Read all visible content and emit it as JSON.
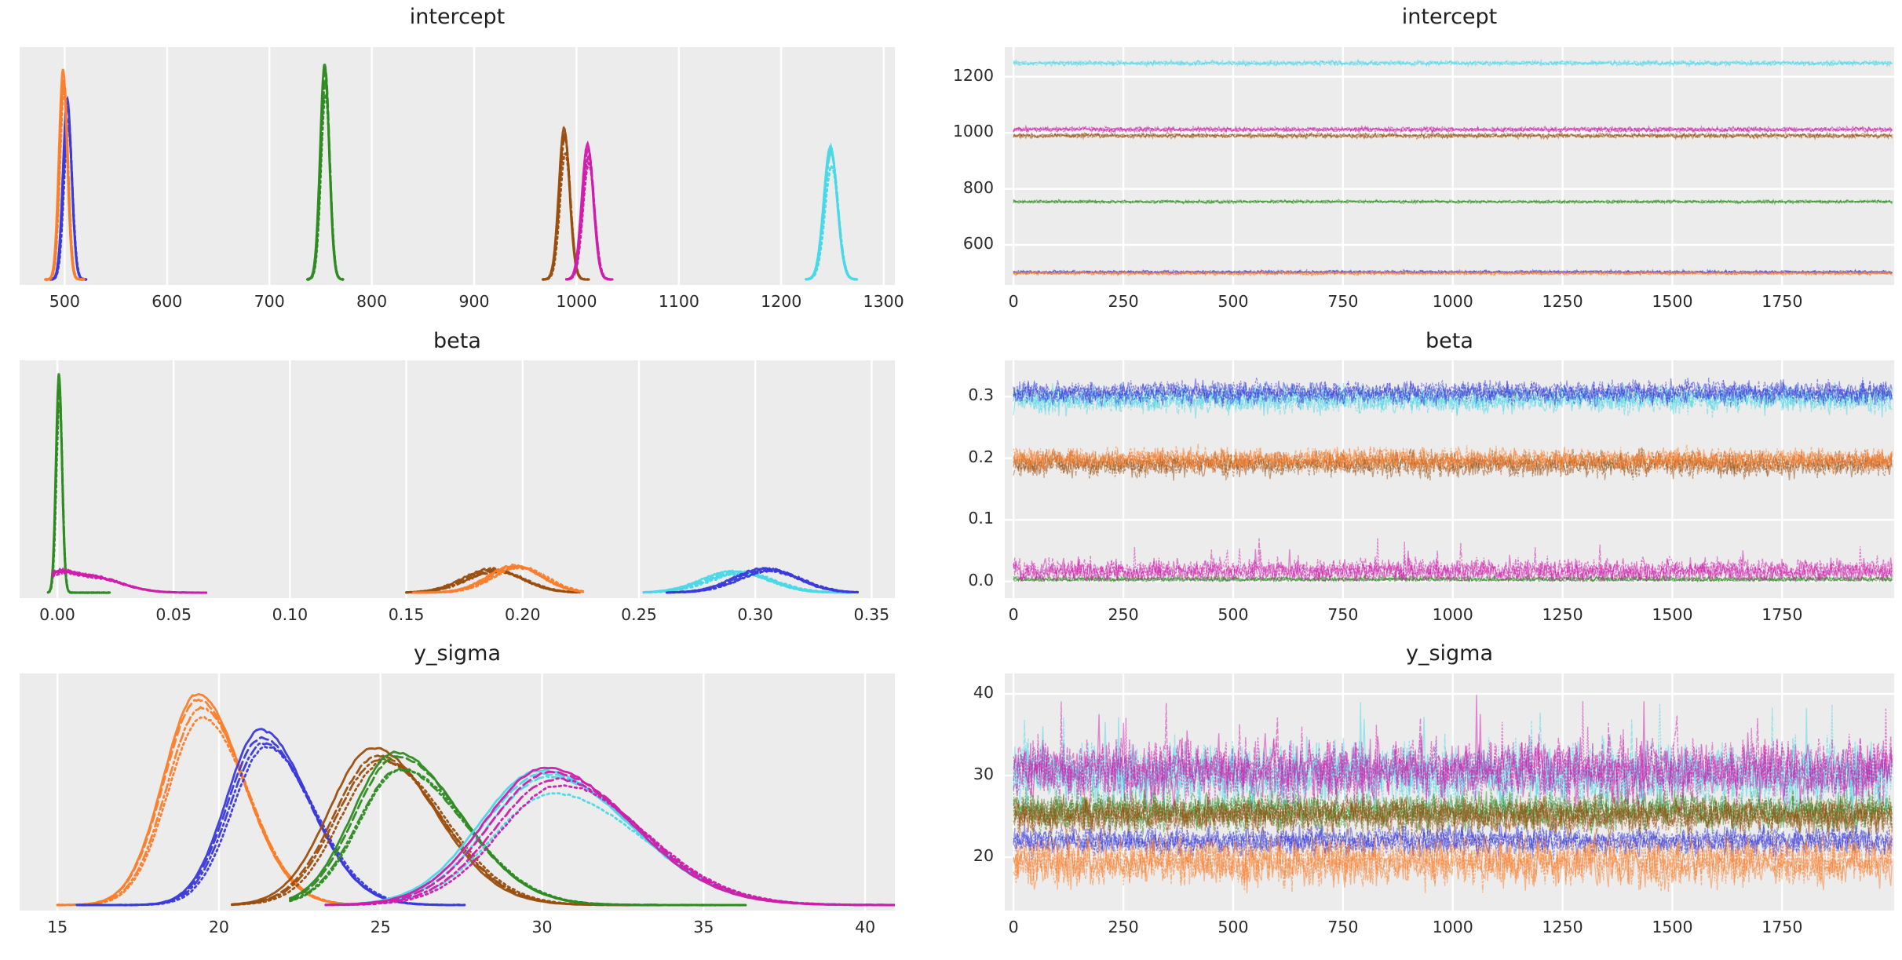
{
  "figure": {
    "background": "#ffffff",
    "panel_background": "#ececec",
    "grid_color": "#ffffff",
    "grid_width": 2.5,
    "tick_label_color": "#2b2b2b",
    "title_color": "#1f1f1f"
  },
  "palette": {
    "blue": "#3a3adb",
    "orange": "#fb7d2a",
    "green": "#2e8b22",
    "brown": "#9a4e0e",
    "magenta": "#d01cab",
    "cyan": "#49d8e8"
  },
  "chain_line_styles": [
    "solid",
    "dashed",
    "dashdot",
    "dotted"
  ],
  "chart_data": [
    {
      "title": "intercept",
      "type": "area",
      "kind": "kde",
      "grid": "x",
      "xlim": [
        456,
        1311
      ],
      "xticks": [
        500,
        600,
        700,
        800,
        900,
        1000,
        1100,
        1200,
        1300
      ],
      "xtick_labels": [
        "500",
        "600",
        "700",
        "800",
        "900",
        "1000",
        "1100",
        "1200",
        "1300"
      ],
      "series": [
        {
          "name": "chain-group-blue",
          "color": "blue",
          "shape": "gauss",
          "mu": 503,
          "sigma": 4.2,
          "peak": 0.8,
          "range": [
            486,
            521
          ]
        },
        {
          "name": "chain-group-orange",
          "color": "orange",
          "shape": "gauss",
          "mu": 499,
          "sigma": 4.0,
          "peak": 0.93,
          "range": [
            481,
            519
          ]
        },
        {
          "name": "chain-group-green",
          "color": "green",
          "shape": "gauss",
          "mu": 754.5,
          "sigma": 4.4,
          "peak": 0.955,
          "range": [
            737,
            772
          ]
        },
        {
          "name": "chain-group-brown",
          "color": "brown",
          "shape": "gauss",
          "mu": 988.5,
          "sigma": 5.2,
          "peak": 0.67,
          "range": [
            967,
            1012
          ]
        },
        {
          "name": "chain-group-magenta",
          "color": "magenta",
          "shape": "gauss",
          "mu": 1011.5,
          "sigma": 5.6,
          "peak": 0.6,
          "range": [
            990,
            1035
          ]
        },
        {
          "name": "chain-group-cyan",
          "color": "cyan",
          "shape": "gauss",
          "mu": 1248.5,
          "sigma": 6.5,
          "peak": 0.59,
          "range": [
            1224,
            1274
          ]
        }
      ]
    },
    {
      "title": "intercept",
      "type": "line",
      "kind": "trace",
      "grid": "xy",
      "xlim": [
        -20,
        2005
      ],
      "xdata": [
        0,
        2000
      ],
      "xticks": [
        0,
        250,
        500,
        750,
        1000,
        1250,
        1500,
        1750
      ],
      "xtick_labels": [
        "0",
        "250",
        "500",
        "750",
        "1000",
        "1250",
        "1500",
        "1750"
      ],
      "ylim": [
        457,
        1306
      ],
      "yticks": [
        600,
        800,
        1000,
        1200
      ],
      "ytick_labels": [
        "600",
        "800",
        "1000",
        "1200"
      ],
      "series": [
        {
          "name": "chain-group-blue",
          "color": "blue",
          "mean": 503,
          "sd": 3.2
        },
        {
          "name": "chain-group-orange",
          "color": "orange",
          "mean": 499,
          "sd": 3.4
        },
        {
          "name": "chain-group-green",
          "color": "green",
          "mean": 754,
          "sd": 3.0
        },
        {
          "name": "chain-group-brown",
          "color": "brown",
          "mean": 990,
          "sd": 4.5
        },
        {
          "name": "chain-group-magenta",
          "color": "magenta",
          "mean": 1012,
          "sd": 4.5
        },
        {
          "name": "chain-group-cyan",
          "color": "cyan",
          "mean": 1249,
          "sd": 4.5
        }
      ]
    },
    {
      "title": "beta",
      "type": "area",
      "kind": "kde",
      "grid": "x",
      "xlim": [
        -0.0162,
        0.36
      ],
      "xticks": [
        0.0,
        0.05,
        0.1,
        0.15,
        0.2,
        0.25,
        0.3,
        0.35
      ],
      "xtick_labels": [
        "0.00",
        "0.05",
        "0.10",
        "0.15",
        "0.20",
        "0.25",
        "0.30",
        "0.35"
      ],
      "series": [
        {
          "name": "chain-group-green",
          "color": "green",
          "shape": "gauss",
          "mu": 0.0008,
          "sigma": 0.0013,
          "peak": 0.97,
          "range": [
            -0.004,
            0.0225
          ]
        },
        {
          "name": "chain-group-magenta",
          "color": "magenta",
          "shape": "mix",
          "components": [
            {
              "mu": 0.0,
              "s": 0.006,
              "w": 0.45
            },
            {
              "mu": 0.014,
              "s": 0.013,
              "w": 0.62
            }
          ],
          "peak": 0.1,
          "range": [
            -0.002,
            0.064
          ]
        },
        {
          "name": "chain-group-brown",
          "color": "brown",
          "shape": "gauss",
          "mu": 0.188,
          "sigma": 0.0125,
          "peak": 0.105,
          "range": [
            0.15,
            0.2245
          ]
        },
        {
          "name": "chain-group-orange",
          "color": "orange",
          "shape": "gauss",
          "mu": 0.1975,
          "sigma": 0.0115,
          "peak": 0.12,
          "range": [
            0.153,
            0.226
          ]
        },
        {
          "name": "chain-group-cyan",
          "color": "cyan",
          "shape": "gauss",
          "mu": 0.293,
          "sigma": 0.014,
          "peak": 0.095,
          "range": [
            0.252,
            0.341
          ]
        },
        {
          "name": "chain-group-blue",
          "color": "blue",
          "shape": "gauss",
          "mu": 0.3055,
          "sigma": 0.0135,
          "peak": 0.107,
          "range": [
            0.262,
            0.344
          ]
        }
      ]
    },
    {
      "title": "beta",
      "type": "line",
      "kind": "trace",
      "grid": "xy",
      "xlim": [
        -20,
        2005
      ],
      "xdata": [
        0,
        2000
      ],
      "xticks": [
        0,
        250,
        500,
        750,
        1000,
        1250,
        1500,
        1750
      ],
      "xtick_labels": [
        "0",
        "250",
        "500",
        "750",
        "1000",
        "1250",
        "1500",
        "1750"
      ],
      "ylim": [
        -0.027,
        0.359
      ],
      "yticks": [
        0.0,
        0.1,
        0.2,
        0.3
      ],
      "ytick_labels": [
        "0.0",
        "0.1",
        "0.2",
        "0.3"
      ],
      "series": [
        {
          "name": "chain-group-green",
          "color": "green",
          "mean": 0.0035,
          "sd": 0.0026,
          "clip_min": 0.0005
        },
        {
          "name": "chain-group-magenta",
          "color": "magenta",
          "mean": 0.017,
          "sd": 0.01,
          "clip_min": 0.0005,
          "spikes": "up"
        },
        {
          "name": "chain-group-brown",
          "color": "brown",
          "mean": 0.191,
          "sd": 0.0105
        },
        {
          "name": "chain-group-orange",
          "color": "orange",
          "mean": 0.198,
          "sd": 0.0095
        },
        {
          "name": "chain-group-cyan",
          "color": "cyan",
          "mean": 0.296,
          "sd": 0.0115
        },
        {
          "name": "chain-group-blue",
          "color": "blue",
          "mean": 0.306,
          "sd": 0.0095
        }
      ]
    },
    {
      "title": "y_sigma",
      "type": "area",
      "kind": "kde",
      "grid": "x",
      "xlim": [
        13.83,
        40.92
      ],
      "xticks": [
        15,
        20,
        25,
        30,
        35,
        40
      ],
      "xtick_labels": [
        "15",
        "20",
        "25",
        "30",
        "35",
        "40"
      ],
      "series": [
        {
          "name": "chain-group-orange",
          "color": "orange",
          "shape": "gauss",
          "mu": 19.4,
          "sigma": 1.05,
          "sigma_r": 1.4,
          "peak": 0.94,
          "range": [
            15.0,
            24.3
          ]
        },
        {
          "name": "chain-group-blue",
          "color": "blue",
          "shape": "gauss",
          "mu": 21.35,
          "sigma": 1.05,
          "sigma_r": 1.5,
          "peak": 0.78,
          "range": [
            15.6,
            27.6
          ]
        },
        {
          "name": "chain-group-brown",
          "color": "brown",
          "shape": "gauss",
          "mu": 24.95,
          "sigma": 1.35,
          "sigma_r": 1.9,
          "peak": 0.7,
          "range": [
            20.4,
            33.6
          ]
        },
        {
          "name": "chain-group-green",
          "color": "green",
          "shape": "gauss",
          "mu": 25.55,
          "sigma": 1.3,
          "sigma_r": 2.0,
          "peak": 0.68,
          "range": [
            22.2,
            36.3
          ]
        },
        {
          "name": "chain-group-cyan",
          "color": "cyan",
          "shape": "gauss",
          "mu": 30.15,
          "sigma": 1.9,
          "sigma_r": 2.7,
          "peak": 0.6,
          "range": [
            23.6,
            41.3
          ]
        },
        {
          "name": "chain-group-magenta",
          "color": "magenta",
          "shape": "gauss",
          "mu": 30.35,
          "sigma": 1.9,
          "sigma_r": 2.6,
          "peak": 0.61,
          "range": [
            23.3,
            41.0
          ]
        }
      ]
    },
    {
      "title": "y_sigma",
      "type": "line",
      "kind": "trace",
      "grid": "xy",
      "xlim": [
        -20,
        2005
      ],
      "xdata": [
        0,
        2000
      ],
      "xticks": [
        0,
        250,
        500,
        750,
        1000,
        1250,
        1500,
        1750
      ],
      "xtick_labels": [
        "0",
        "250",
        "500",
        "750",
        "1000",
        "1250",
        "1500",
        "1750"
      ],
      "ylim": [
        13.46,
        42.5
      ],
      "yticks": [
        20,
        30,
        40
      ],
      "ytick_labels": [
        "20",
        "30",
        "40"
      ],
      "series": [
        {
          "name": "chain-group-green",
          "color": "green",
          "mean": 25.6,
          "sd": 1.2
        },
        {
          "name": "chain-group-blue",
          "color": "blue",
          "mean": 22.0,
          "sd": 0.9
        },
        {
          "name": "chain-group-orange",
          "color": "orange",
          "mean": 19.4,
          "sd": 1.5
        },
        {
          "name": "chain-group-brown",
          "color": "brown",
          "mean": 25.2,
          "sd": 1.15
        },
        {
          "name": "chain-group-cyan",
          "color": "cyan",
          "mean": 30.3,
          "sd": 1.9,
          "spikes": "up"
        },
        {
          "name": "chain-group-magenta",
          "color": "magenta",
          "mean": 30.7,
          "sd": 1.9,
          "spikes": "up"
        }
      ]
    }
  ]
}
